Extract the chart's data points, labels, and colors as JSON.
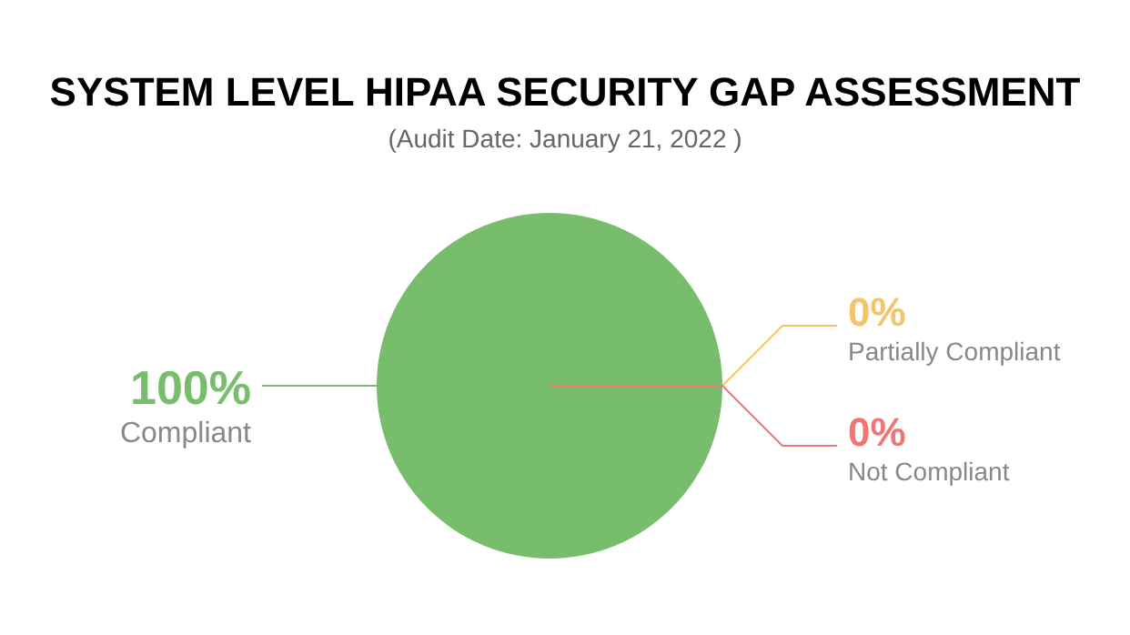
{
  "chart_data": {
    "type": "pie",
    "title": "SYSTEM LEVEL HIPAA SECURITY GAP ASSESSMENT",
    "subtitle": "(Audit Date: January 21, 2022 )",
    "categories": [
      "Compliant",
      "Partially Compliant",
      "Not Compliant"
    ],
    "values": [
      100,
      0,
      0
    ],
    "value_labels": [
      "100%",
      "0%",
      "0%"
    ],
    "colors": [
      "#77bd6b",
      "#f5c46a",
      "#f07575"
    ],
    "legend": false
  }
}
